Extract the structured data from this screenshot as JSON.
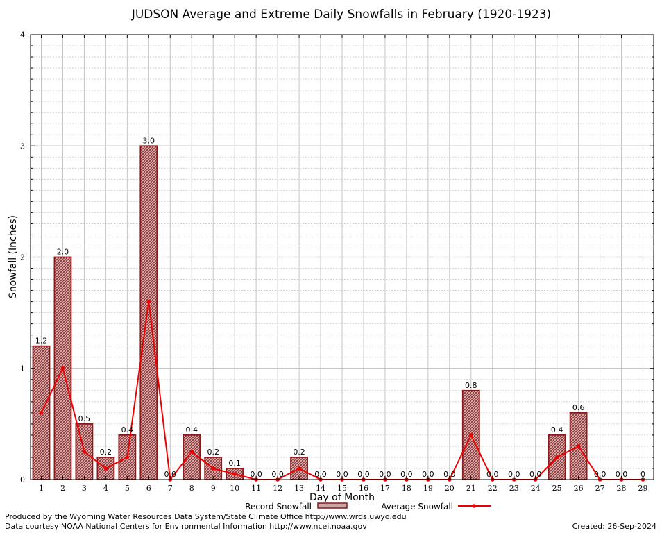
{
  "chart_data": {
    "type": "bar",
    "title": "JUDSON Average and Extreme Daily Snowfalls in February (1920-1923)",
    "xlabel": "Day of Month",
    "ylabel": "Snowfall (Inches)",
    "ylim": [
      0,
      4
    ],
    "yticks": [
      "0",
      "1",
      "2",
      "3",
      "4"
    ],
    "grid": true,
    "categories": [
      "1",
      "2",
      "3",
      "4",
      "5",
      "6",
      "7",
      "8",
      "9",
      "10",
      "11",
      "12",
      "13",
      "14",
      "15",
      "16",
      "17",
      "18",
      "19",
      "20",
      "21",
      "22",
      "23",
      "24",
      "25",
      "26",
      "27",
      "28",
      "29"
    ],
    "series": [
      {
        "name": "Record Snowfall",
        "kind": "bar",
        "color": "#8b1a1a",
        "values": [
          1.2,
          2.0,
          0.5,
          0.2,
          0.4,
          3.0,
          0.0,
          0.4,
          0.2,
          0.1,
          0.0,
          0.0,
          0.2,
          0.0,
          0.0,
          0.0,
          0.0,
          0.0,
          0.0,
          0.0,
          0.8,
          0.0,
          0.0,
          0.0,
          0.4,
          0.6,
          0.0,
          0.0,
          0.0
        ],
        "labels": [
          "1.2",
          "2.0",
          "0.5",
          "0.2",
          "0.4",
          "3.0",
          "0.0",
          "0.4",
          "0.2",
          "0.1",
          "0.0",
          "0.0",
          "0.2",
          "0.0",
          "0.0",
          "0.0",
          "0.0",
          "0.0",
          "0.0",
          "0.0",
          "0.8",
          "0.0",
          "0.0",
          "0.0",
          "0.4",
          "0.6",
          "0.0",
          "0.0",
          "0"
        ]
      },
      {
        "name": "Average Snowfall",
        "kind": "line",
        "color": "#ee0000",
        "values": [
          0.6,
          1.0,
          0.25,
          0.1,
          0.2,
          1.6,
          0.0,
          0.25,
          0.1,
          0.05,
          0.0,
          0.0,
          0.1,
          0.0,
          0.0,
          0.0,
          0.0,
          0.0,
          0.0,
          0.0,
          0.4,
          0.0,
          0.0,
          0.0,
          0.2,
          0.3,
          0.0,
          0.0,
          0.0
        ]
      }
    ],
    "legend": "bottom-center"
  },
  "footer": {
    "produced_by": "Produced by the Wyoming Water Resources Data System/State Climate Office http://www.wrds.uwyo.edu",
    "courtesy": "Data courtesy NOAA National Centers for Environmental Information http://www.ncei.noaa.gov",
    "created": "Created: 26-Sep-2024"
  }
}
